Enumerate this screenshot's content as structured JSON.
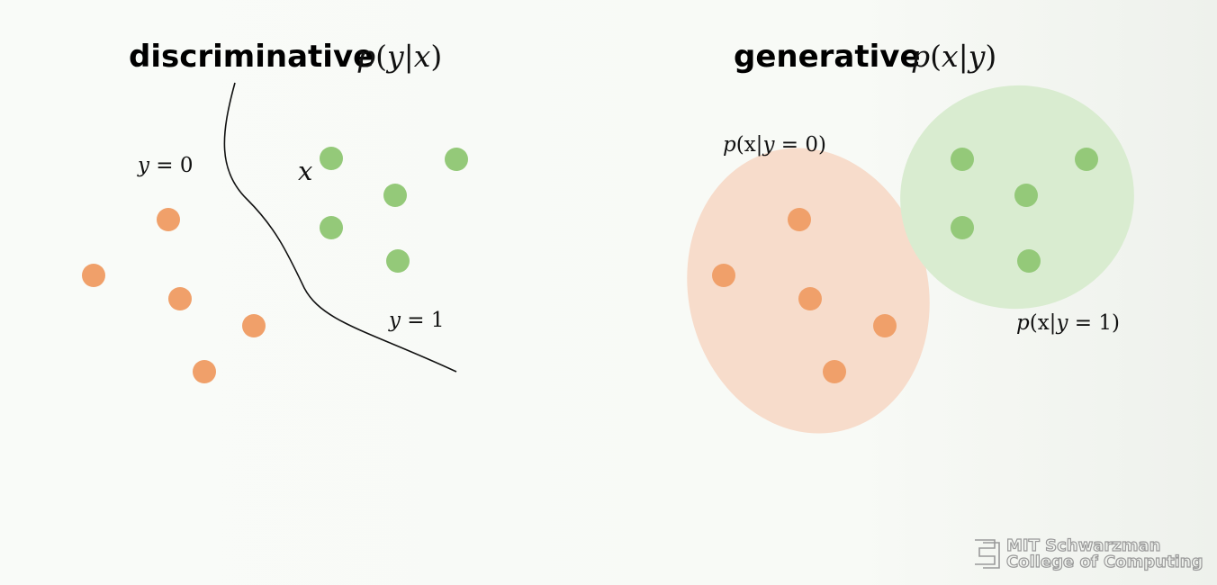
{
  "colors": {
    "class0_point": "#f0a06a",
    "class1_point": "#94c979",
    "class0_region": "#f7dccb",
    "class1_region": "#d9ecd0",
    "boundary": "#111111"
  },
  "discriminative": {
    "title": "discriminative",
    "formula": {
      "p": "p",
      "open": "(",
      "a": "y",
      "bar": "|",
      "b": "x",
      "close": ")"
    },
    "label_y0": {
      "var": "y",
      "eq": " = ",
      "val": "0"
    },
    "label_y1": {
      "var": "y",
      "eq": " = ",
      "val": "1"
    },
    "label_x": "x"
  },
  "generative": {
    "title": "generative",
    "formula": {
      "p": "p",
      "open": "(",
      "a": "x",
      "bar": "|",
      "b": "y",
      "close": ")"
    },
    "label_class0": {
      "p": "p",
      "open": "(x|",
      "var": "y",
      "eq": " = ",
      "val": "0",
      "close": ")"
    },
    "label_class1": {
      "p": "p",
      "open": "(x|",
      "var": "y",
      "eq": " = ",
      "val": "1",
      "close": ")"
    }
  },
  "logo": {
    "line1": "MIT Schwarzman",
    "line2": "College of Computing",
    "icon": "mit-logo-icon"
  }
}
